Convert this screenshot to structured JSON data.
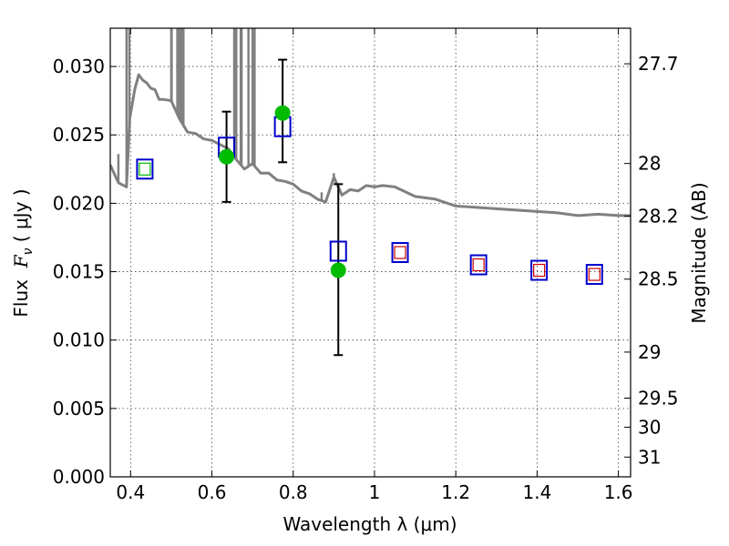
{
  "chart_data": {
    "type": "scatter",
    "xlabel": "Wavelength  λ (μm)",
    "ylabel_prefix": "Flux  ",
    "ylabel_var": "F",
    "ylabel_sub": "ν",
    "ylabel_unit": " ( μJy )",
    "y2label": "Magnitude (AB)",
    "xlim": [
      0.35,
      1.63
    ],
    "ylim": [
      0.0,
      0.0328
    ],
    "grid": true,
    "x_ticks": [
      {
        "value": 0.4,
        "label": "0.4"
      },
      {
        "value": 0.6,
        "label": "0.6"
      },
      {
        "value": 0.8,
        "label": "0.8"
      },
      {
        "value": 1.0,
        "label": "1"
      },
      {
        "value": 1.2,
        "label": "1.2"
      },
      {
        "value": 1.4,
        "label": "1.4"
      },
      {
        "value": 1.6,
        "label": "1.6"
      }
    ],
    "y_ticks": [
      {
        "value": 0.0,
        "label": "0.000"
      },
      {
        "value": 0.005,
        "label": "0.005"
      },
      {
        "value": 0.01,
        "label": "0.010"
      },
      {
        "value": 0.015,
        "label": "0.015"
      },
      {
        "value": 0.02,
        "label": "0.020"
      },
      {
        "value": 0.025,
        "label": "0.025"
      },
      {
        "value": 0.03,
        "label": "0.030"
      }
    ],
    "y2_ticks": [
      {
        "mag": 27.7,
        "label": "27.7"
      },
      {
        "mag": 28.0,
        "label": "28"
      },
      {
        "mag": 28.2,
        "label": "28.2"
      },
      {
        "mag": 28.5,
        "label": "28.5"
      },
      {
        "mag": 29.0,
        "label": "29"
      },
      {
        "mag": 29.5,
        "label": "29.5"
      },
      {
        "mag": 30.0,
        "label": "30"
      },
      {
        "mag": 31.0,
        "label": "31"
      }
    ],
    "series": [
      {
        "role": "model-spectrum",
        "style": "line",
        "color": "#808080",
        "x": [
          0.35,
          0.37,
          0.39,
          0.398,
          0.41,
          0.42,
          0.43,
          0.44,
          0.45,
          0.46,
          0.47,
          0.48,
          0.5,
          0.52,
          0.54,
          0.56,
          0.58,
          0.6,
          0.62,
          0.64,
          0.66,
          0.68,
          0.7,
          0.72,
          0.74,
          0.76,
          0.78,
          0.8,
          0.82,
          0.84,
          0.86,
          0.88,
          0.9,
          0.92,
          0.94,
          0.96,
          0.98,
          1.0,
          1.02,
          1.05,
          1.1,
          1.15,
          1.2,
          1.25,
          1.3,
          1.35,
          1.4,
          1.45,
          1.5,
          1.55,
          1.6,
          1.63
        ],
        "y": [
          0.0228,
          0.0215,
          0.0212,
          0.0262,
          0.0283,
          0.0294,
          0.029,
          0.0288,
          0.0284,
          0.0283,
          0.0276,
          0.0276,
          0.0275,
          0.0262,
          0.0252,
          0.0251,
          0.0247,
          0.0246,
          0.0243,
          0.024,
          0.0232,
          0.0225,
          0.0229,
          0.0222,
          0.0222,
          0.0217,
          0.0216,
          0.0214,
          0.0209,
          0.0207,
          0.0203,
          0.0201,
          0.0219,
          0.0206,
          0.021,
          0.0209,
          0.0213,
          0.0212,
          0.0213,
          0.0212,
          0.0205,
          0.0203,
          0.0198,
          0.0197,
          0.0196,
          0.0195,
          0.0194,
          0.0193,
          0.0191,
          0.0192,
          0.0191,
          0.0191
        ]
      },
      {
        "role": "model-spectrum-emission-lines",
        "style": "spikes",
        "color": "#808080",
        "x": [
          0.37,
          0.39,
          0.397,
          0.5,
          0.501,
          0.515,
          0.52,
          0.525,
          0.53,
          0.655,
          0.66,
          0.671,
          0.673,
          0.69,
          0.7,
          0.705,
          0.87,
          0.9
        ],
        "y_top": [
          0.0236,
          0.0328,
          0.0328,
          0.0328,
          0.0328,
          0.0328,
          0.0328,
          0.0328,
          0.0328,
          0.0328,
          0.0328,
          0.0328,
          0.0328,
          0.0328,
          0.0328,
          0.0328,
          0.0208,
          0.0222
        ]
      },
      {
        "role": "observed-photometry",
        "style": "filled-circle-with-errorbars",
        "color": "#00bb00",
        "errorbar_color": "#000000",
        "x": [
          0.636,
          0.774,
          0.911
        ],
        "y": [
          0.0234,
          0.0266,
          0.0151
        ],
        "yerr_low": [
          0.0033,
          0.0036,
          0.0062
        ],
        "yerr_high": [
          0.0033,
          0.0039,
          0.0063
        ]
      },
      {
        "role": "model-photometry",
        "style": "open-square",
        "color": "#0000cc",
        "x": [
          0.435,
          0.636,
          0.774,
          0.911,
          1.063,
          1.256,
          1.405,
          1.541
        ],
        "y": [
          0.0225,
          0.0241,
          0.0256,
          0.0165,
          0.0164,
          0.0155,
          0.0151,
          0.0148
        ]
      },
      {
        "role": "inner-markers",
        "style": "small-open-square",
        "x": [
          0.435,
          1.063,
          1.256,
          1.405,
          1.541
        ],
        "y": [
          0.0225,
          0.0164,
          0.0155,
          0.0151,
          0.0148
        ],
        "colors": [
          "#00bb00",
          "#cc0000",
          "#cc0000",
          "#cc0000",
          "#cc0000"
        ]
      }
    ]
  }
}
